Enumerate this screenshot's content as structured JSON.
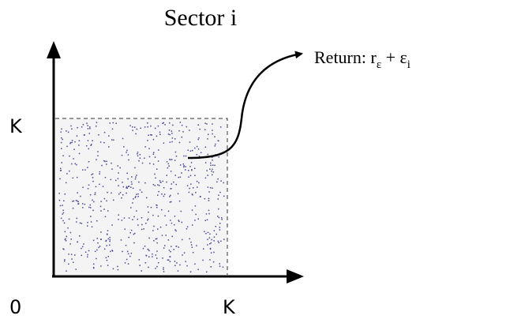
{
  "title": "Sector i",
  "y_axis_label": "K",
  "origin_label": "0",
  "x_axis_label": "K",
  "return_label": {
    "prefix": "Return: r",
    "sub1": "ε",
    "middle": " + ε",
    "sub2": "i"
  }
}
